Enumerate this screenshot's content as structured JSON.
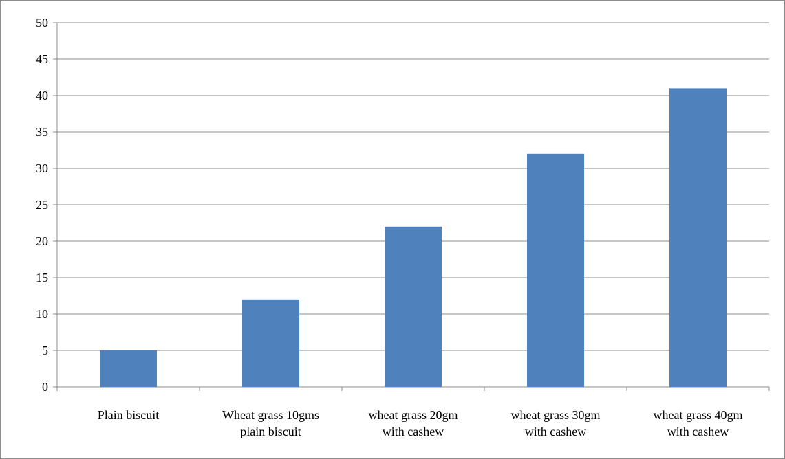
{
  "chart_data": {
    "type": "bar",
    "title": "",
    "xlabel": "",
    "ylabel": "",
    "ylim": [
      0,
      50
    ],
    "yticks": [
      0,
      5,
      10,
      15,
      20,
      25,
      30,
      35,
      40,
      45,
      50
    ],
    "grid": true,
    "legend": "none",
    "bar_color": "#4F81BD",
    "categories": [
      [
        "Plain biscuit"
      ],
      [
        "Wheat grass 10gms",
        "plain biscuit"
      ],
      [
        "wheat grass 20gm",
        "with cashew"
      ],
      [
        "wheat grass 30gm",
        "with cashew"
      ],
      [
        "wheat grass 40gm",
        "with cashew"
      ]
    ],
    "values": [
      5,
      12,
      22,
      32,
      41
    ]
  }
}
